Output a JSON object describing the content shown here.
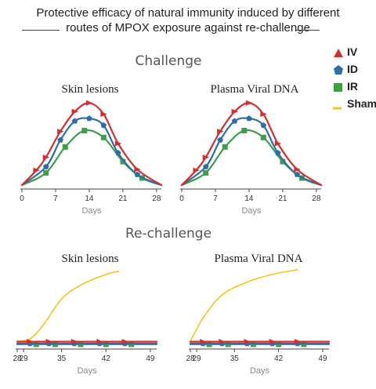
{
  "title_line1": "Protective efficacy of natural immunity induced by different",
  "title_line2": "routes of MPOX exposure against re-challenge",
  "section_challenge": "Challenge",
  "section_rechallenge": "Re-challenge",
  "colors": {
    "IV": "#d32f2f",
    "ID": "#2c6fa8",
    "IR": "#3f9e4a",
    "Sham": "#f5c518"
  },
  "legend": [
    {
      "label": "IV",
      "color": "#d32f2f",
      "marker": "triangle"
    },
    {
      "label": "ID",
      "color": "#2c6fa8",
      "marker": "pentagon"
    },
    {
      "label": "IR",
      "color": "#3f9e4a",
      "marker": "square"
    },
    {
      "label": "Sham",
      "color": "#f5c518",
      "marker": "line"
    }
  ],
  "chart_data": [
    {
      "type": "line",
      "title": "Skin lesions",
      "xlabel": "Days",
      "xlim": [
        0,
        29
      ],
      "xticks": [
        0,
        7,
        14,
        21,
        28
      ],
      "ylim": [
        0,
        1
      ],
      "series": [
        {
          "name": "IV",
          "x": [
            3,
            5,
            8,
            11,
            14,
            17,
            20,
            24
          ],
          "y": [
            0.19,
            0.34,
            0.64,
            0.87,
            0.97,
            0.84,
            0.5,
            0.2
          ]
        },
        {
          "name": "ID",
          "x": [
            5,
            8,
            11,
            14,
            17,
            20,
            24
          ],
          "y": [
            0.23,
            0.54,
            0.76,
            0.79,
            0.71,
            0.39,
            0.14
          ]
        },
        {
          "name": "IR",
          "x": [
            5,
            9,
            13,
            17,
            21,
            25
          ],
          "y": [
            0.16,
            0.46,
            0.65,
            0.57,
            0.29,
            0.1
          ]
        }
      ]
    },
    {
      "type": "line",
      "title": "Plasma Viral DNA",
      "xlabel": "Days",
      "xlim": [
        0,
        29
      ],
      "xticks": [
        0,
        7,
        14,
        21,
        28
      ],
      "ylim": [
        0,
        1
      ],
      "series": [
        {
          "name": "IV",
          "x": [
            3,
            5,
            8,
            11,
            14,
            17,
            20,
            24
          ],
          "y": [
            0.19,
            0.34,
            0.64,
            0.87,
            0.97,
            0.84,
            0.5,
            0.2
          ]
        },
        {
          "name": "ID",
          "x": [
            5,
            8,
            11,
            14,
            17,
            20,
            24
          ],
          "y": [
            0.23,
            0.54,
            0.76,
            0.79,
            0.71,
            0.39,
            0.14
          ]
        },
        {
          "name": "IR",
          "x": [
            5,
            9,
            13,
            17,
            21,
            25
          ],
          "y": [
            0.16,
            0.46,
            0.65,
            0.57,
            0.29,
            0.1
          ]
        }
      ]
    },
    {
      "type": "line",
      "title": "Skin lesions",
      "xlabel": "Days",
      "xlim": [
        28,
        50
      ],
      "xticks": [
        28,
        29,
        35,
        42,
        49
      ],
      "ylim": [
        0,
        1
      ],
      "series": [
        {
          "name": "Sham",
          "x": [
            28,
            30,
            32,
            35,
            38,
            42,
            44
          ],
          "y": [
            0.05,
            0.08,
            0.25,
            0.6,
            0.78,
            0.92,
            0.96
          ]
        },
        {
          "name": "IV",
          "x": [
            30,
            33,
            37,
            41,
            45
          ],
          "y": [
            0.045,
            0.045,
            0.045,
            0.045,
            0.045
          ]
        },
        {
          "name": "ID",
          "x": [
            30,
            33,
            37,
            41,
            45
          ],
          "y": [
            0.02,
            0.02,
            0.02,
            0.02,
            0.02
          ]
        },
        {
          "name": "IR",
          "x": [
            31,
            34,
            38,
            42,
            46
          ],
          "y": [
            0.01,
            0.01,
            0.01,
            0.01,
            0.01
          ]
        }
      ]
    },
    {
      "type": "line",
      "title": "Plasma Viral DNA",
      "xlabel": "Days",
      "xlim": [
        28,
        50
      ],
      "xticks": [
        28,
        29,
        35,
        42,
        49
      ],
      "ylim": [
        0,
        1
      ],
      "series": [
        {
          "name": "Sham",
          "x": [
            28,
            30,
            33,
            37,
            41,
            45
          ],
          "y": [
            0.05,
            0.35,
            0.65,
            0.82,
            0.92,
            0.98
          ]
        },
        {
          "name": "IV",
          "x": [
            30,
            33,
            37,
            41,
            45
          ],
          "y": [
            0.045,
            0.045,
            0.045,
            0.045,
            0.045
          ]
        },
        {
          "name": "ID",
          "x": [
            30,
            33,
            37,
            41,
            45
          ],
          "y": [
            0.02,
            0.02,
            0.02,
            0.02,
            0.02
          ]
        },
        {
          "name": "IR",
          "x": [
            31,
            34,
            38,
            42,
            46
          ],
          "y": [
            0.01,
            0.01,
            0.01,
            0.01,
            0.01
          ]
        }
      ]
    }
  ]
}
